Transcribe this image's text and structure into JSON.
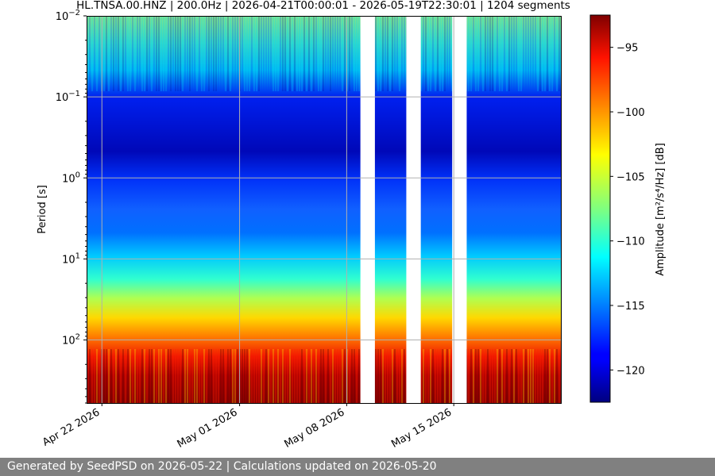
{
  "chart_data": {
    "type": "heatmap",
    "title": "HL.TNSA.00.HNZ | 200.0Hz | 2026-04-21T00:00:01 - 2026-05-19T22:30:01 | 1204 segments",
    "ylabel": "Period [s]",
    "y_scale": "log",
    "y_inverted": true,
    "ylim": [
      0.01,
      600
    ],
    "y_ticks": [
      {
        "value": 0.01,
        "base": "10",
        "exp": "−2"
      },
      {
        "value": 0.1,
        "base": "10",
        "exp": "−1"
      },
      {
        "value": 1,
        "base": "10",
        "exp": "0"
      },
      {
        "value": 10,
        "base": "10",
        "exp": "1"
      },
      {
        "value": 100,
        "base": "10",
        "exp": "2"
      }
    ],
    "xlim": [
      "2026-04-21",
      "2026-05-22"
    ],
    "x_ticks": [
      {
        "date": "2026-04-22",
        "label": "Apr 22 2026"
      },
      {
        "date": "2026-05-01",
        "label": "May 01 2026"
      },
      {
        "date": "2026-05-08",
        "label": "May 08 2026"
      },
      {
        "date": "2026-05-15",
        "label": "May 15 2026"
      }
    ],
    "data_gaps": [
      [
        "2026-05-09",
        "2026-05-10"
      ],
      [
        "2026-05-12",
        "2026-05-13"
      ],
      [
        "2026-05-15",
        "2026-05-16"
      ]
    ],
    "grid": true,
    "colormap": "jet",
    "colorbar": {
      "label": "Amplitude [m²/s⁴/Hz] [dB]",
      "range": [
        -122.5,
        -92.5
      ],
      "ticks": [
        "−95",
        "−100",
        "−105",
        "−110",
        "−115",
        "−120"
      ],
      "tick_values": [
        -95,
        -100,
        -105,
        -110,
        -115,
        -120
      ]
    }
  },
  "footer": {
    "text": "Generated by SeedPSD on 2026-05-22 | Calculations updated on 2026-05-20"
  }
}
